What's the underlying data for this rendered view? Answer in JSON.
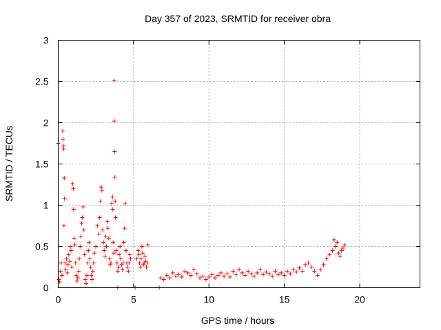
{
  "chart_data": {
    "type": "scatter",
    "title": "Day 357 of 2023, SRMTID for receiver obra",
    "xlabel": "GPS time / hours",
    "ylabel": "SRMTID / TECUs",
    "xlim": [
      0,
      24
    ],
    "ylim": [
      0,
      3
    ],
    "xticks": [
      0,
      5,
      10,
      15,
      20
    ],
    "xtick_labels": [
      "0",
      "5",
      "10",
      "15",
      "20"
    ],
    "yticks": [
      0,
      0.5,
      1,
      1.5,
      2,
      2.5,
      3
    ],
    "ytick_labels": [
      "0",
      "0.5",
      "1",
      "1.5",
      "2",
      "2.5",
      "3"
    ],
    "grid": true,
    "marker": "+",
    "series": [
      {
        "name": "SRMTID",
        "color": "#ff0000",
        "points": [
          [
            0.0,
            1.75
          ],
          [
            0.05,
            0.1
          ],
          [
            0.1,
            0.07
          ],
          [
            0.15,
            0.2
          ],
          [
            0.2,
            0.3
          ],
          [
            0.25,
            0.15
          ],
          [
            0.3,
            1.9
          ],
          [
            0.32,
            1.8
          ],
          [
            0.34,
            1.72
          ],
          [
            0.36,
            1.68
          ],
          [
            0.4,
            1.33
          ],
          [
            0.42,
            1.08
          ],
          [
            0.38,
            0.75
          ],
          [
            0.45,
            0.3
          ],
          [
            0.5,
            0.22
          ],
          [
            0.55,
            0.35
          ],
          [
            0.6,
            0.18
          ],
          [
            0.65,
            0.28
          ],
          [
            0.7,
            0.4
          ],
          [
            0.75,
            0.32
          ],
          [
            0.8,
            0.5
          ],
          [
            0.85,
            0.45
          ],
          [
            0.9,
            0.25
          ],
          [
            0.95,
            1.26
          ],
          [
            1.0,
            1.2
          ],
          [
            1.02,
            0.95
          ],
          [
            1.05,
            0.6
          ],
          [
            1.1,
            0.52
          ],
          [
            1.15,
            0.3
          ],
          [
            1.2,
            0.15
          ],
          [
            1.25,
            0.08
          ],
          [
            1.3,
            0.12
          ],
          [
            1.35,
            0.2
          ],
          [
            1.4,
            0.35
          ],
          [
            1.45,
            0.5
          ],
          [
            1.5,
            0.62
          ],
          [
            1.55,
            0.78
          ],
          [
            1.6,
            0.85
          ],
          [
            1.65,
            0.98
          ],
          [
            1.7,
            0.7
          ],
          [
            1.75,
            0.4
          ],
          [
            1.8,
            0.1
          ],
          [
            1.85,
            0.05
          ],
          [
            1.9,
            0.15
          ],
          [
            1.95,
            0.3
          ],
          [
            2.0,
            0.45
          ],
          [
            2.05,
            0.55
          ],
          [
            2.1,
            0.35
          ],
          [
            2.15,
            0.25
          ],
          [
            2.2,
            0.15
          ],
          [
            2.25,
            0.1
          ],
          [
            2.3,
            0.2
          ],
          [
            2.35,
            0.3
          ],
          [
            2.4,
            0.42
          ],
          [
            2.5,
            0.5
          ],
          [
            2.6,
            0.75
          ],
          [
            2.7,
            0.65
          ],
          [
            2.75,
            0.85
          ],
          [
            2.8,
            1.05
          ],
          [
            2.85,
            1.22
          ],
          [
            2.9,
            1.18
          ],
          [
            2.95,
            0.7
          ],
          [
            3.0,
            0.55
          ],
          [
            3.05,
            0.45
          ],
          [
            3.1,
            0.38
          ],
          [
            3.15,
            0.62
          ],
          [
            3.2,
            0.5
          ],
          [
            3.25,
            0.8
          ],
          [
            3.3,
            0.72
          ],
          [
            3.35,
            0.6
          ],
          [
            3.4,
            0.35
          ],
          [
            3.45,
            0.28
          ],
          [
            3.5,
            0.3
          ],
          [
            3.55,
            1.02
          ],
          [
            3.6,
            1.1
          ],
          [
            3.62,
            0.95
          ],
          [
            3.65,
            0.55
          ],
          [
            3.68,
            0.42
          ],
          [
            3.7,
            2.51
          ],
          [
            3.72,
            2.02
          ],
          [
            3.74,
            1.65
          ],
          [
            3.76,
            1.34
          ],
          [
            3.78,
            1.05
          ],
          [
            3.8,
            0.85
          ],
          [
            3.85,
            0.45
          ],
          [
            3.9,
            0.3
          ],
          [
            3.95,
            0.2
          ],
          [
            4.0,
            0.25
          ],
          [
            4.05,
            0.4
          ],
          [
            4.1,
            0.5
          ],
          [
            4.15,
            0.35
          ],
          [
            4.2,
            0.28
          ],
          [
            4.25,
            0.22
          ],
          [
            4.3,
            0.3
          ],
          [
            4.35,
            0.55
          ],
          [
            4.4,
            0.72
          ],
          [
            4.45,
            1.02
          ],
          [
            4.5,
            0.45
          ],
          [
            4.55,
            0.3
          ],
          [
            4.6,
            0.25
          ],
          [
            4.65,
            0.2
          ],
          [
            4.7,
            0.3
          ],
          [
            4.75,
            0.4
          ],
          [
            4.8,
            0.35
          ],
          [
            3.95,
            0.0
          ],
          [
            5.1,
            0.0
          ],
          [
            6.7,
            0.0
          ],
          [
            5.2,
            0.35
          ],
          [
            5.3,
            0.45
          ],
          [
            5.35,
            0.4
          ],
          [
            5.4,
            0.3
          ],
          [
            5.45,
            0.25
          ],
          [
            5.5,
            0.35
          ],
          [
            5.55,
            0.5
          ],
          [
            5.6,
            0.42
          ],
          [
            5.65,
            0.28
          ],
          [
            5.7,
            0.3
          ],
          [
            5.75,
            0.38
          ],
          [
            5.8,
            0.32
          ],
          [
            5.85,
            0.25
          ],
          [
            5.9,
            0.3
          ],
          [
            5.95,
            0.52
          ],
          [
            6.8,
            0.12
          ],
          [
            7.0,
            0.1
          ],
          [
            7.2,
            0.15
          ],
          [
            7.4,
            0.12
          ],
          [
            7.6,
            0.18
          ],
          [
            7.8,
            0.14
          ],
          [
            8.0,
            0.16
          ],
          [
            8.2,
            0.13
          ],
          [
            8.4,
            0.2
          ],
          [
            8.6,
            0.18
          ],
          [
            8.8,
            0.15
          ],
          [
            9.0,
            0.22
          ],
          [
            9.2,
            0.17
          ],
          [
            9.4,
            0.12
          ],
          [
            9.6,
            0.14
          ],
          [
            9.8,
            0.1
          ],
          [
            10.0,
            0.13
          ],
          [
            10.2,
            0.16
          ],
          [
            10.4,
            0.12
          ],
          [
            10.6,
            0.15
          ],
          [
            10.8,
            0.18
          ],
          [
            11.0,
            0.14
          ],
          [
            11.2,
            0.17
          ],
          [
            11.4,
            0.13
          ],
          [
            11.6,
            0.2
          ],
          [
            11.8,
            0.16
          ],
          [
            12.0,
            0.22
          ],
          [
            12.2,
            0.18
          ],
          [
            12.4,
            0.15
          ],
          [
            12.6,
            0.2
          ],
          [
            12.8,
            0.17
          ],
          [
            13.0,
            0.14
          ],
          [
            13.2,
            0.18
          ],
          [
            13.4,
            0.22
          ],
          [
            13.6,
            0.16
          ],
          [
            13.8,
            0.19
          ],
          [
            14.0,
            0.17
          ],
          [
            14.2,
            0.14
          ],
          [
            14.4,
            0.2
          ],
          [
            14.6,
            0.16
          ],
          [
            14.8,
            0.18
          ],
          [
            15.0,
            0.15
          ],
          [
            15.2,
            0.2
          ],
          [
            15.4,
            0.17
          ],
          [
            15.6,
            0.22
          ],
          [
            15.8,
            0.19
          ],
          [
            16.0,
            0.24
          ],
          [
            16.2,
            0.2
          ],
          [
            16.4,
            0.28
          ],
          [
            16.6,
            0.3
          ],
          [
            16.8,
            0.25
          ],
          [
            17.0,
            0.2
          ],
          [
            17.2,
            0.15
          ],
          [
            17.4,
            0.22
          ],
          [
            17.6,
            0.28
          ],
          [
            17.8,
            0.35
          ],
          [
            18.0,
            0.4
          ],
          [
            18.2,
            0.45
          ],
          [
            18.3,
            0.58
          ],
          [
            18.4,
            0.5
          ],
          [
            18.5,
            0.55
          ],
          [
            18.6,
            0.42
          ],
          [
            18.7,
            0.38
          ],
          [
            18.8,
            0.45
          ],
          [
            18.9,
            0.48
          ],
          [
            19.0,
            0.52
          ]
        ]
      }
    ]
  }
}
